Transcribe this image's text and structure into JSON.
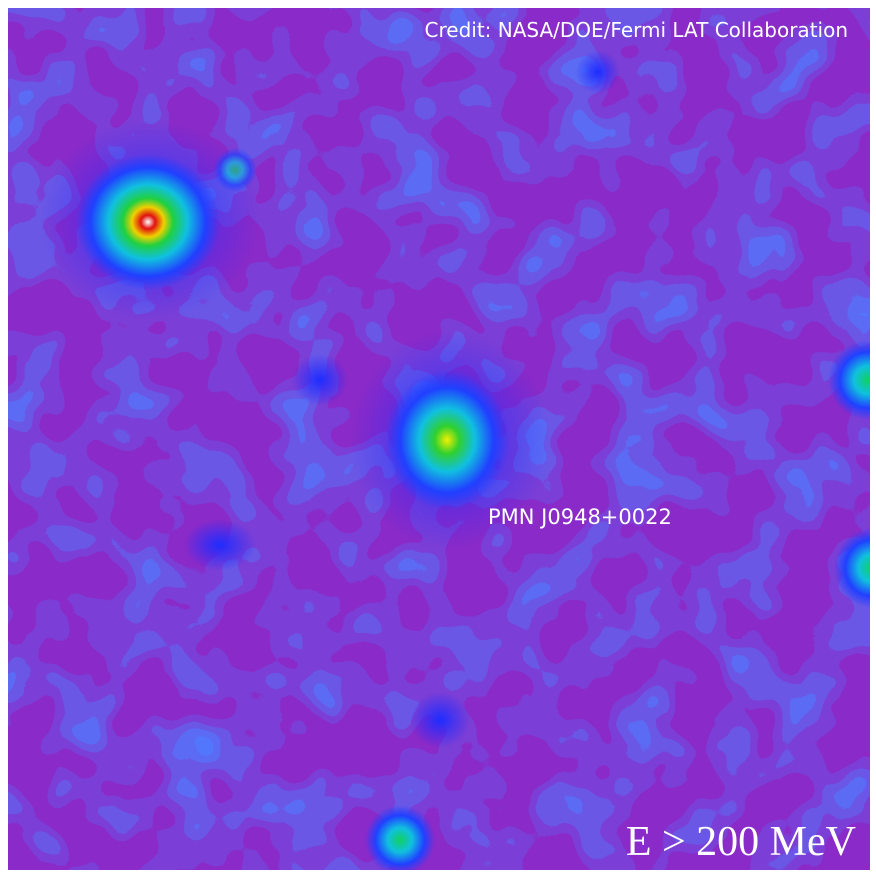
{
  "credit": "Credit: NASA/DOE/Fermi LAT Collaboration",
  "source_label": "PMN J0948+0022",
  "energy_label": "E > 200 MeV"
}
